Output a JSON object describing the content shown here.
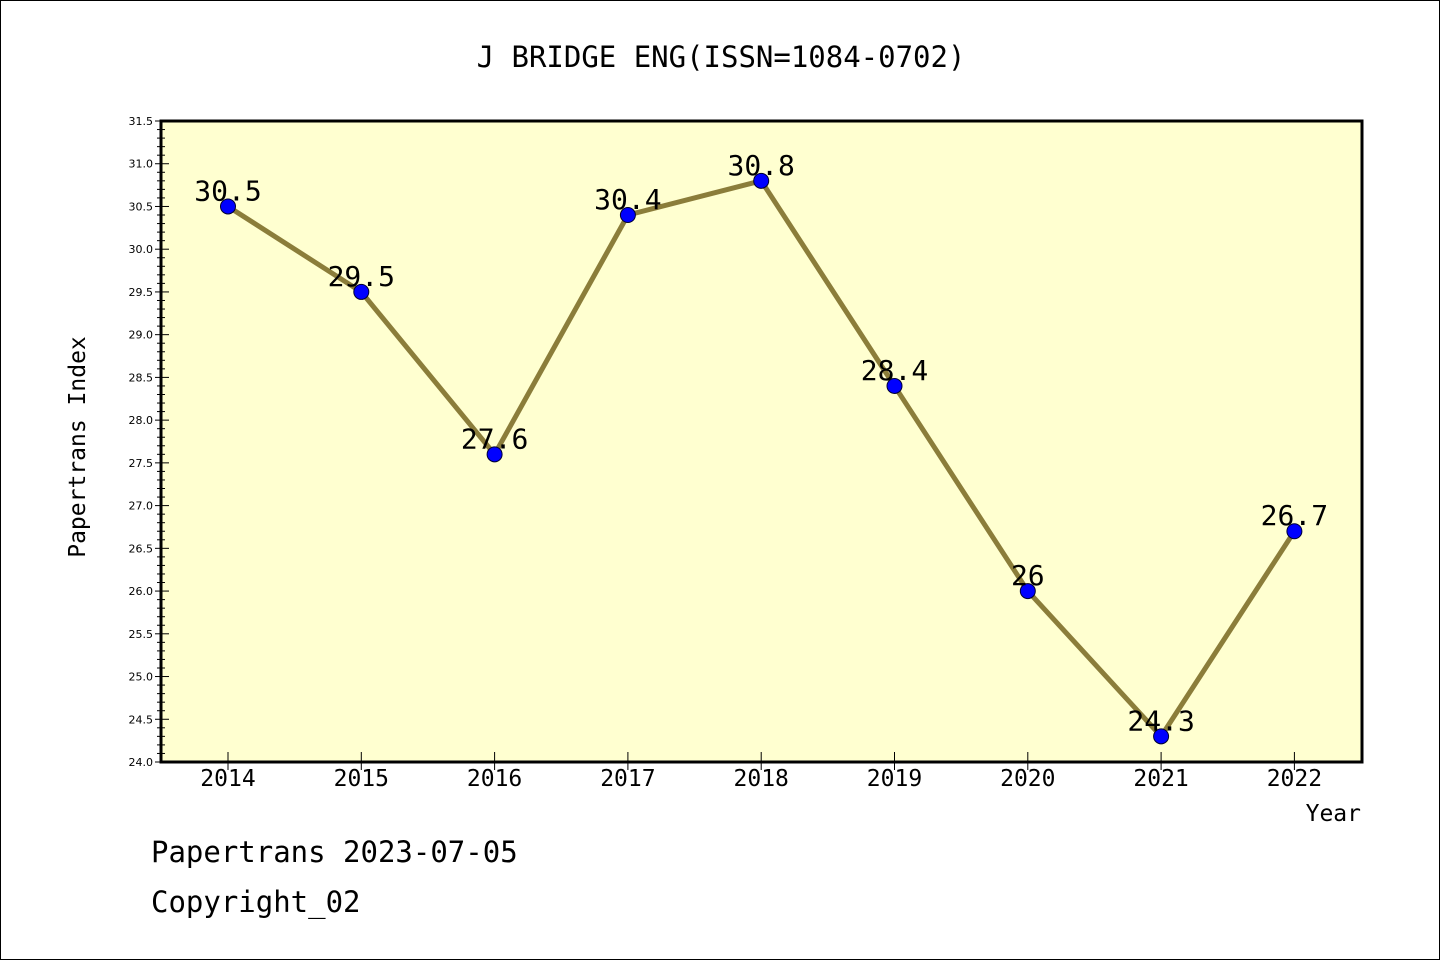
{
  "chart_data": {
    "type": "line",
    "title": "J BRIDGE ENG(ISSN=1084-0702)",
    "xlabel": "Year",
    "ylabel": "Papertrans Index",
    "x": [
      "2014",
      "2015",
      "2016",
      "2017",
      "2018",
      "2019",
      "2020",
      "2021",
      "2022"
    ],
    "series": [
      {
        "values": [
          30.5,
          29.5,
          27.6,
          30.4,
          30.8,
          28.4,
          26.0,
          24.3,
          26.7
        ],
        "data_labels": [
          "30.5",
          "29.5",
          "27.6",
          "30.4",
          "30.8",
          "28.4",
          "26",
          "24.3",
          "26.7"
        ],
        "line_color": "#8b7d3a",
        "marker_color": "#0000ff"
      }
    ],
    "ylim": [
      24.0,
      31.5
    ],
    "yticks": [
      "24.0",
      "24.5",
      "25.0",
      "25.5",
      "26.0",
      "26.5",
      "27.0",
      "27.5",
      "28.0",
      "28.5",
      "29.0",
      "29.5",
      "30.0",
      "30.5",
      "31.0",
      "31.5"
    ],
    "grid": false,
    "plot_background": "#ffffd0"
  },
  "footer": {
    "line1": "Papertrans 2023-07-05",
    "line2": "Copyright_02"
  }
}
